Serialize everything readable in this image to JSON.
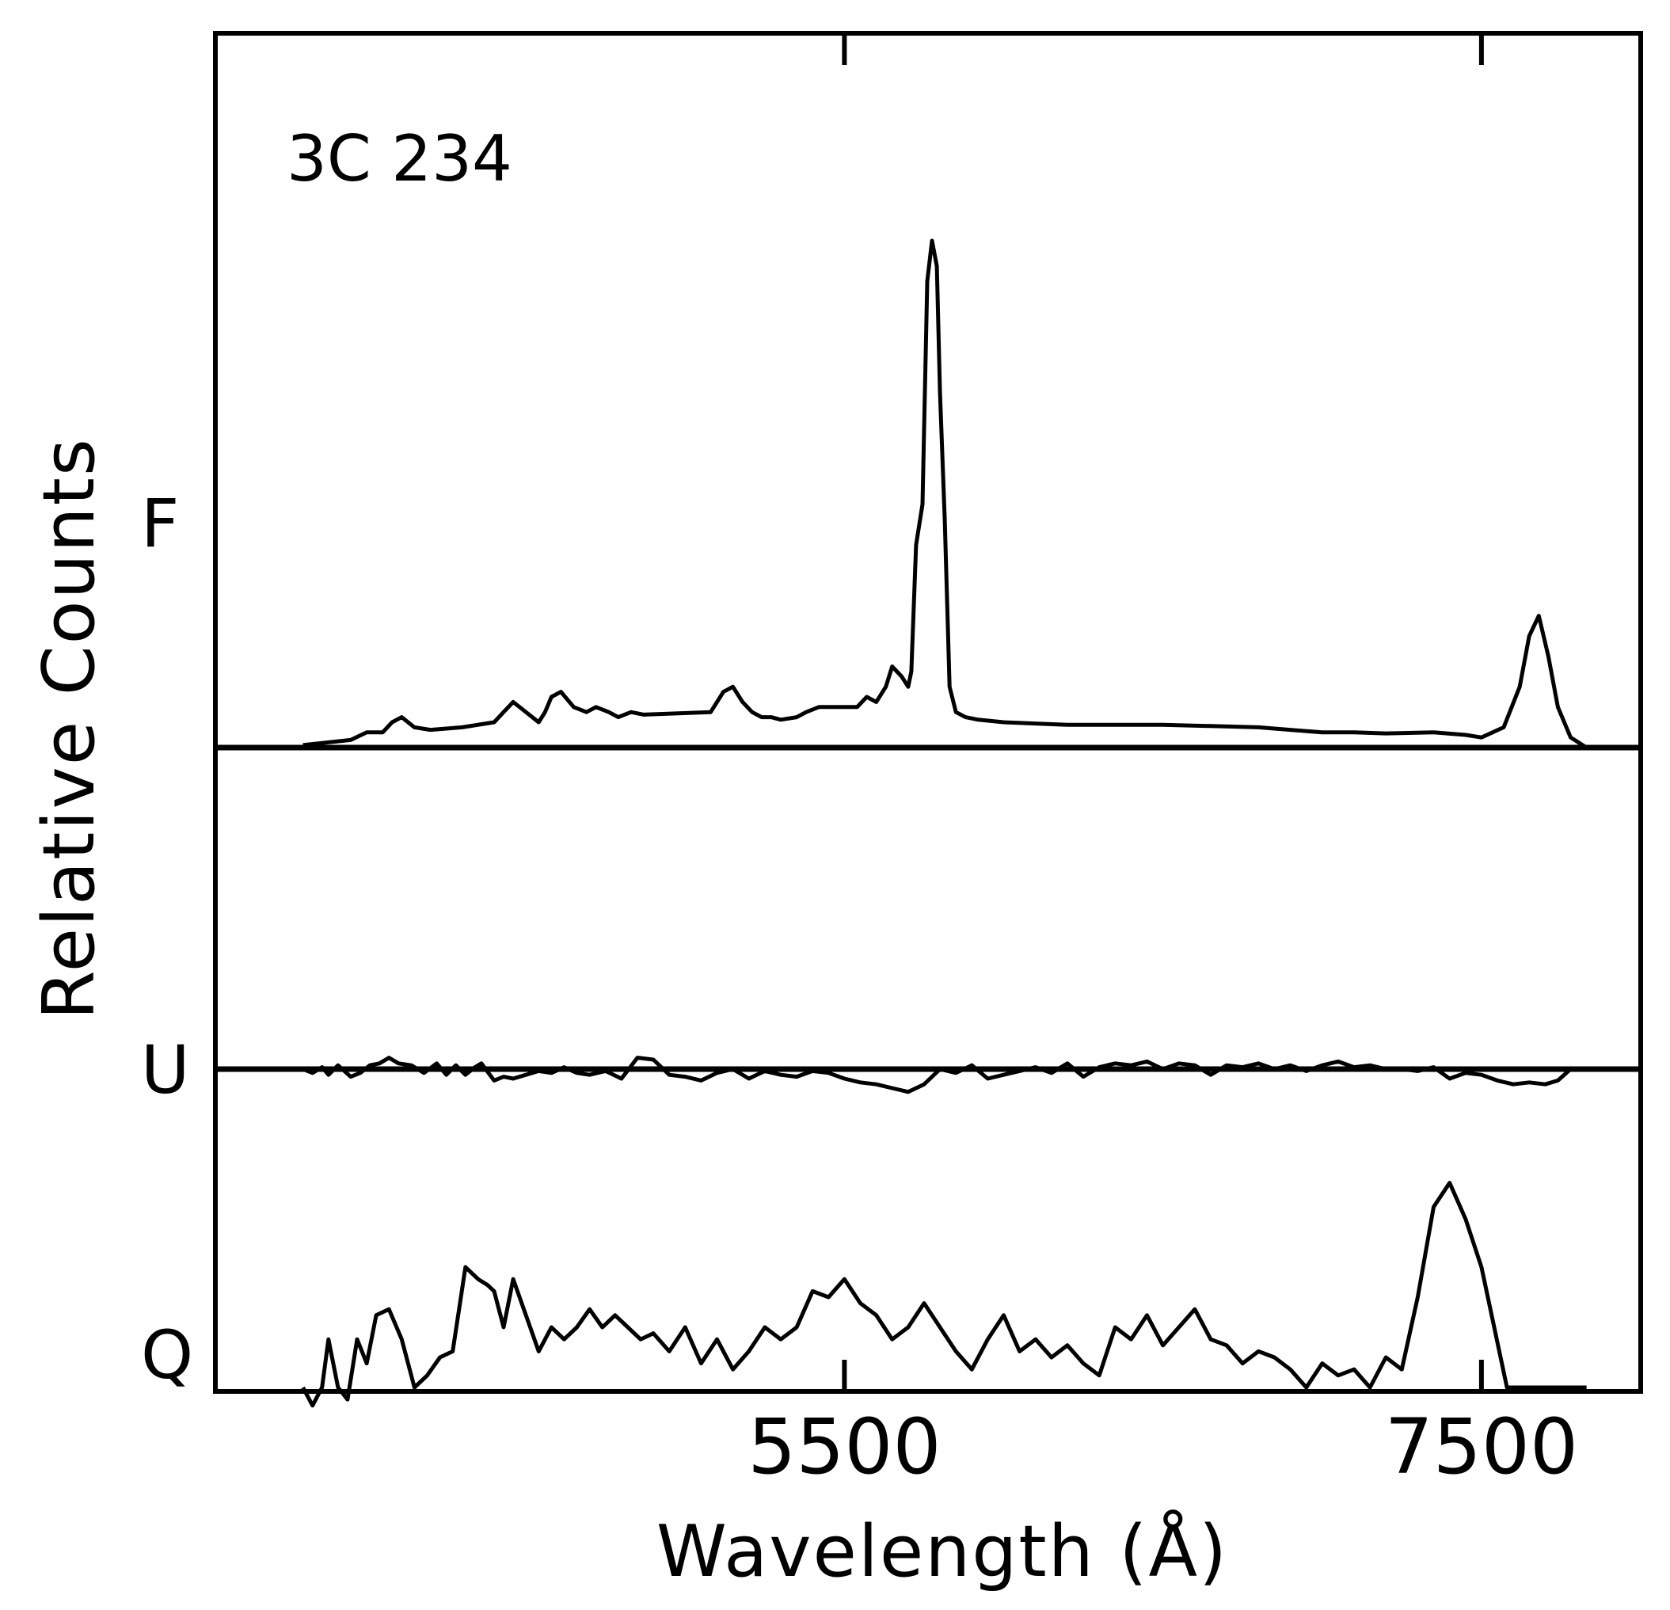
{
  "chart_data": {
    "type": "line",
    "title": "3C 234",
    "xlabel": "Wavelength (Å)",
    "ylabel": "Relative Counts",
    "xlim": [
      3525,
      8000
    ],
    "xticks": [
      {
        "value": 5500,
        "label": "5500"
      },
      {
        "value": 7500,
        "label": "7500"
      }
    ],
    "grid": false,
    "legend": "none",
    "series": [
      {
        "name": "F",
        "panel": "top",
        "ylim": [
          0,
          1
        ],
        "x": [
          3800,
          3950,
          4000,
          4050,
          4080,
          4110,
          4150,
          4200,
          4300,
          4400,
          4430,
          4460,
          4500,
          4540,
          4560,
          4580,
          4610,
          4650,
          4690,
          4720,
          4760,
          4790,
          4830,
          4870,
          5080,
          5100,
          5120,
          5150,
          5180,
          5210,
          5240,
          5270,
          5300,
          5350,
          5380,
          5420,
          5460,
          5500,
          5540,
          5570,
          5600,
          5630,
          5650,
          5680,
          5700,
          5710,
          5725,
          5745,
          5760,
          5775,
          5790,
          5800,
          5815,
          5830,
          5850,
          5880,
          5920,
          6000,
          6200,
          6500,
          6800,
          6900,
          7000,
          7100,
          7200,
          7350,
          7450,
          7500,
          7570,
          7620,
          7650,
          7680,
          7710,
          7740,
          7780,
          7830
        ],
        "y": [
          0.005,
          0.015,
          0.03,
          0.03,
          0.05,
          0.06,
          0.04,
          0.035,
          0.04,
          0.05,
          0.07,
          0.09,
          0.07,
          0.05,
          0.07,
          0.1,
          0.11,
          0.08,
          0.07,
          0.08,
          0.07,
          0.06,
          0.07,
          0.065,
          0.07,
          0.09,
          0.11,
          0.12,
          0.09,
          0.07,
          0.06,
          0.06,
          0.055,
          0.06,
          0.07,
          0.08,
          0.08,
          0.08,
          0.08,
          0.1,
          0.09,
          0.12,
          0.16,
          0.14,
          0.12,
          0.15,
          0.4,
          0.48,
          0.92,
          1.0,
          0.95,
          0.7,
          0.45,
          0.12,
          0.07,
          0.06,
          0.055,
          0.05,
          0.045,
          0.045,
          0.04,
          0.035,
          0.03,
          0.03,
          0.028,
          0.03,
          0.025,
          0.02,
          0.04,
          0.12,
          0.22,
          0.26,
          0.18,
          0.08,
          0.02,
          0.0
        ]
      },
      {
        "name": "U",
        "panel": "middle",
        "ylim": [
          -0.2,
          0.2
        ],
        "x": [
          3800,
          3830,
          3860,
          3880,
          3910,
          3950,
          3980,
          4010,
          4040,
          4070,
          4100,
          4140,
          4180,
          4220,
          4250,
          4280,
          4310,
          4340,
          4360,
          4400,
          4430,
          4460,
          4500,
          4540,
          4580,
          4620,
          4660,
          4700,
          4750,
          4800,
          4850,
          4900,
          4950,
          5000,
          5050,
          5100,
          5150,
          5200,
          5250,
          5300,
          5350,
          5400,
          5450,
          5500,
          5550,
          5600,
          5650,
          5700,
          5750,
          5800,
          5850,
          5900,
          5950,
          6000,
          6050,
          6100,
          6150,
          6200,
          6250,
          6300,
          6350,
          6400,
          6450,
          6500,
          6550,
          6600,
          6650,
          6700,
          6750,
          6800,
          6850,
          6900,
          6950,
          7000,
          7050,
          7100,
          7150,
          7200,
          7250,
          7300,
          7350,
          7400,
          7450,
          7500,
          7550,
          7600,
          7650,
          7700,
          7740,
          7780
        ],
        "y": [
          0.0,
          -0.02,
          0.01,
          -0.03,
          0.02,
          -0.04,
          -0.02,
          0.02,
          0.03,
          0.06,
          0.03,
          0.02,
          -0.02,
          0.03,
          -0.03,
          0.02,
          -0.03,
          0.01,
          0.03,
          -0.06,
          -0.04,
          -0.05,
          -0.03,
          -0.01,
          -0.02,
          0.01,
          -0.02,
          -0.03,
          -0.01,
          -0.05,
          0.06,
          0.05,
          -0.03,
          -0.04,
          -0.06,
          -0.02,
          0.0,
          -0.05,
          -0.01,
          -0.03,
          -0.04,
          -0.01,
          -0.02,
          -0.05,
          -0.07,
          -0.08,
          -0.1,
          -0.12,
          -0.08,
          0.0,
          -0.02,
          0.02,
          -0.05,
          -0.03,
          -0.01,
          0.01,
          -0.02,
          0.03,
          -0.04,
          0.01,
          0.03,
          0.02,
          0.04,
          0.0,
          0.03,
          0.02,
          -0.03,
          0.02,
          0.01,
          0.03,
          0.0,
          0.02,
          -0.01,
          0.02,
          0.04,
          0.01,
          0.02,
          0.0,
          0.0,
          -0.01,
          0.01,
          -0.05,
          -0.02,
          -0.03,
          -0.06,
          -0.08,
          -0.07,
          -0.08,
          -0.06,
          0.0
        ]
      },
      {
        "name": "Q",
        "panel": "bottom",
        "ylim": [
          0,
          0.5
        ],
        "x": [
          3800,
          3830,
          3860,
          3880,
          3910,
          3940,
          3970,
          4000,
          4030,
          4070,
          4110,
          4150,
          4190,
          4230,
          4270,
          4310,
          4350,
          4380,
          4400,
          4430,
          4460,
          4500,
          4540,
          4580,
          4620,
          4660,
          4700,
          4740,
          4780,
          4820,
          4860,
          4900,
          4950,
          5000,
          5050,
          5100,
          5150,
          5200,
          5250,
          5300,
          5350,
          5400,
          5450,
          5500,
          5550,
          5600,
          5650,
          5700,
          5750,
          5800,
          5850,
          5900,
          5950,
          6000,
          6050,
          6100,
          6150,
          6200,
          6250,
          6300,
          6350,
          6400,
          6450,
          6500,
          6550,
          6600,
          6650,
          6700,
          6750,
          6800,
          6850,
          6900,
          6950,
          7000,
          7050,
          7100,
          7150,
          7200,
          7250,
          7300,
          7350,
          7400,
          7450,
          7500,
          7540,
          7580,
          7620,
          7660,
          7700,
          7740,
          7780,
          7830
        ],
        "y": [
          0.0,
          -0.03,
          0.0,
          0.08,
          0.0,
          -0.02,
          0.08,
          0.04,
          0.12,
          0.13,
          0.08,
          0.0,
          0.02,
          0.05,
          0.06,
          0.2,
          0.18,
          0.17,
          0.16,
          0.1,
          0.18,
          0.12,
          0.06,
          0.1,
          0.08,
          0.1,
          0.13,
          0.1,
          0.12,
          0.1,
          0.08,
          0.09,
          0.06,
          0.1,
          0.04,
          0.08,
          0.03,
          0.06,
          0.1,
          0.08,
          0.1,
          0.16,
          0.15,
          0.18,
          0.14,
          0.12,
          0.08,
          0.1,
          0.14,
          0.1,
          0.06,
          0.03,
          0.08,
          0.12,
          0.06,
          0.08,
          0.05,
          0.07,
          0.04,
          0.02,
          0.1,
          0.08,
          0.12,
          0.07,
          0.1,
          0.13,
          0.08,
          0.07,
          0.04,
          0.06,
          0.05,
          0.03,
          0.0,
          0.04,
          0.02,
          0.03,
          0.0,
          0.05,
          0.03,
          0.15,
          0.3,
          0.34,
          0.28,
          0.2,
          0.1,
          0.0,
          0.0,
          0.0,
          0.0,
          0.0,
          0.0,
          0.0
        ]
      }
    ]
  }
}
